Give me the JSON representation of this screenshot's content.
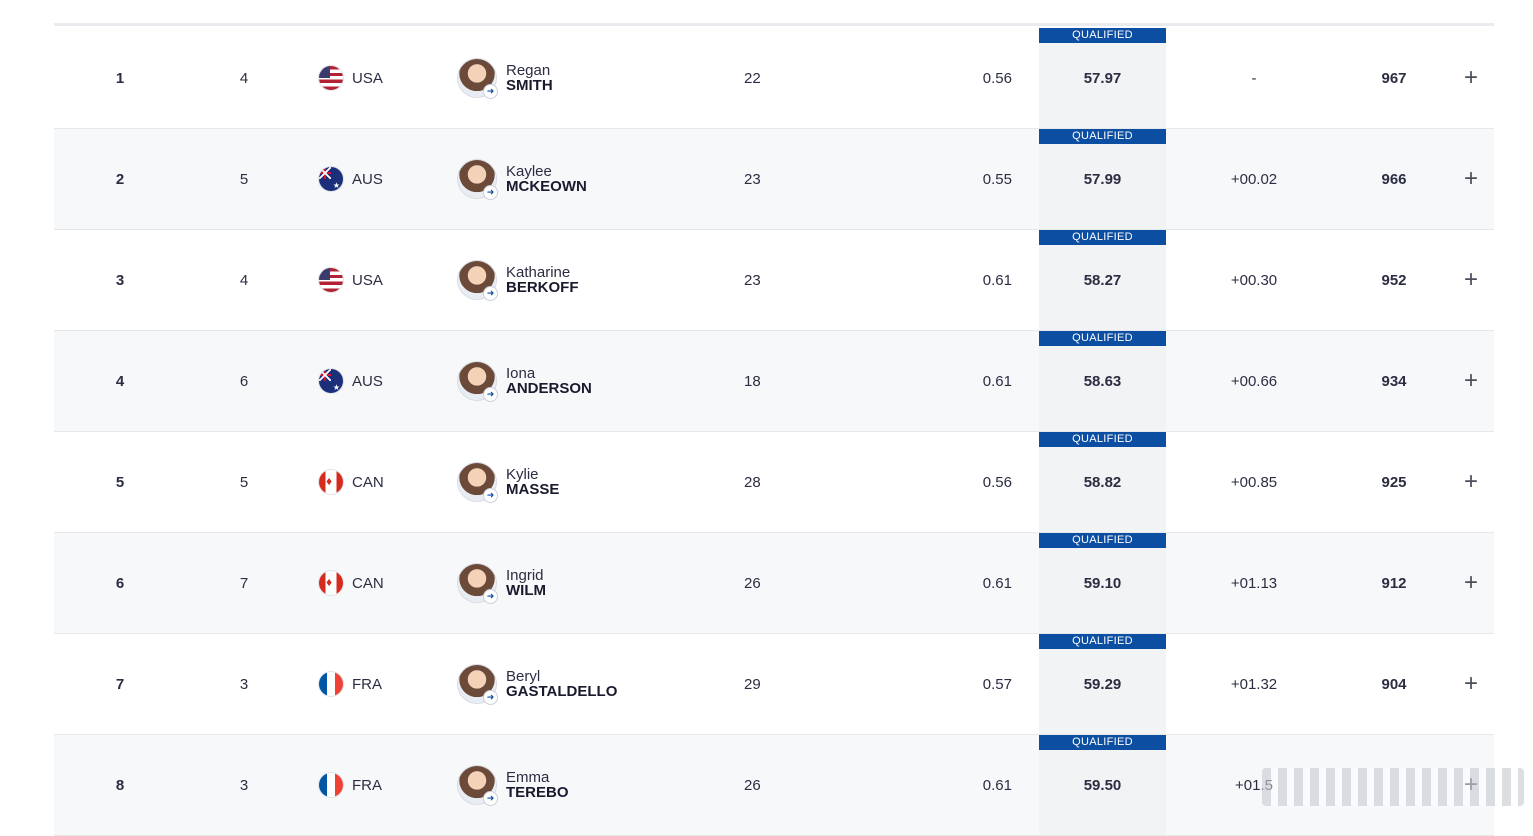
{
  "qualified_label": "QUALIFIED",
  "rows": [
    {
      "rank": "1",
      "lane": "4",
      "country": "USA",
      "flag": "usa",
      "given": "Regan",
      "family": "SMITH",
      "age": "22",
      "rt": "0.56",
      "time": "57.97",
      "behind": "-",
      "points": "967"
    },
    {
      "rank": "2",
      "lane": "5",
      "country": "AUS",
      "flag": "aus",
      "given": "Kaylee",
      "family": "MCKEOWN",
      "age": "23",
      "rt": "0.55",
      "time": "57.99",
      "behind": "+00.02",
      "points": "966"
    },
    {
      "rank": "3",
      "lane": "4",
      "country": "USA",
      "flag": "usa",
      "given": "Katharine",
      "family": "BERKOFF",
      "age": "23",
      "rt": "0.61",
      "time": "58.27",
      "behind": "+00.30",
      "points": "952"
    },
    {
      "rank": "4",
      "lane": "6",
      "country": "AUS",
      "flag": "aus",
      "given": "Iona",
      "family": "ANDERSON",
      "age": "18",
      "rt": "0.61",
      "time": "58.63",
      "behind": "+00.66",
      "points": "934"
    },
    {
      "rank": "5",
      "lane": "5",
      "country": "CAN",
      "flag": "can",
      "given": "Kylie",
      "family": "MASSE",
      "age": "28",
      "rt": "0.56",
      "time": "58.82",
      "behind": "+00.85",
      "points": "925"
    },
    {
      "rank": "6",
      "lane": "7",
      "country": "CAN",
      "flag": "can",
      "given": "Ingrid",
      "family": "WILM",
      "age": "26",
      "rt": "0.61",
      "time": "59.10",
      "behind": "+01.13",
      "points": "912"
    },
    {
      "rank": "7",
      "lane": "3",
      "country": "FRA",
      "flag": "fra",
      "given": "Beryl",
      "family": "GASTALDELLO",
      "age": "29",
      "rt": "0.57",
      "time": "59.29",
      "behind": "+01.32",
      "points": "904"
    },
    {
      "rank": "8",
      "lane": "3",
      "country": "FRA",
      "flag": "fra",
      "given": "Emma",
      "family": "TEREBO",
      "age": "26",
      "rt": "0.61",
      "time": "59.50",
      "behind": "+01.5",
      "points": ""
    }
  ],
  "icons": {
    "expand": "plus-icon",
    "profile_link": "arrow-right-icon"
  },
  "colors": {
    "qualified_badge": "#0b4ea2",
    "time_column_bg": "#f2f3f5",
    "alt_row_bg": "#f7f8fa"
  }
}
